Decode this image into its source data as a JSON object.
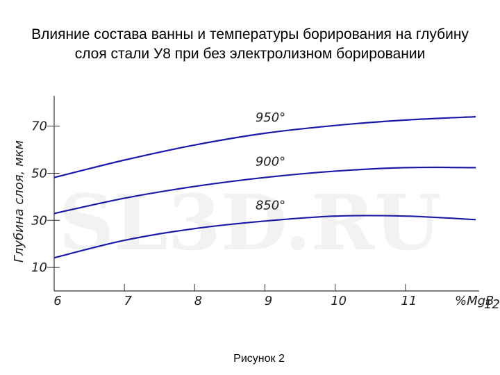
{
  "chart_data": {
    "type": "line",
    "title": "Влияние состава ванны и температуры борирования на глубину слоя стали У8 при без электролизном борировании",
    "x_label": "%MgB",
    "y_label": "Глубина слоя, мкм",
    "caption": "Рисунок 2",
    "watermark": "SL3D.RU",
    "x": [
      6,
      7,
      8,
      9,
      10,
      11,
      12
    ],
    "xlim": [
      6,
      12
    ],
    "xticks": [
      6,
      7,
      8,
      9,
      10,
      11,
      12
    ],
    "ylim": [
      0,
      82
    ],
    "yticks": [
      10,
      30,
      50,
      70
    ],
    "series": [
      {
        "name": "950°",
        "color": "#1a1aa8",
        "values": [
          48.2,
          55.6,
          62,
          67,
          70.3,
          72.6,
          74
        ]
      },
      {
        "name": "900°",
        "color": "#1a1aa8",
        "values": [
          32.9,
          39.4,
          44.4,
          48.2,
          50.9,
          52.4,
          52.4
        ]
      },
      {
        "name": "850°",
        "color": "#1a1aa8",
        "values": [
          14.1,
          21.5,
          26.5,
          29.7,
          31.8,
          31.8,
          30.3
        ]
      }
    ]
  }
}
